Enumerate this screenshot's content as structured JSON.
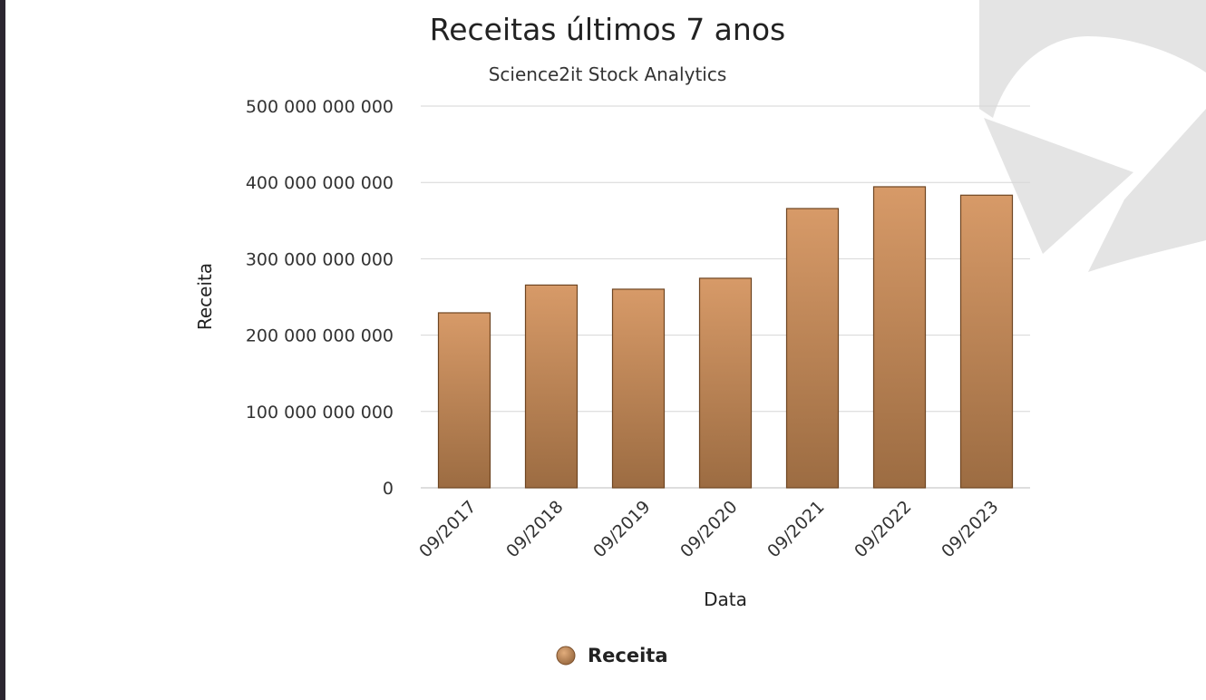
{
  "chart_data": {
    "type": "bar",
    "title": "Receitas últimos 7 anos",
    "subtitle": "Science2it Stock Analytics",
    "xlabel": "Data",
    "ylabel": "Receita",
    "categories": [
      "09/2017",
      "09/2018",
      "09/2019",
      "09/2020",
      "09/2021",
      "09/2022",
      "09/2023"
    ],
    "series": [
      {
        "name": "Receita",
        "values": [
          229234000000,
          265595000000,
          260174000000,
          274515000000,
          365817000000,
          394328000000,
          383285000000
        ]
      }
    ],
    "ylim": [
      0,
      500000000000
    ],
    "y_ticks": [
      {
        "value": 0,
        "label": "0"
      },
      {
        "value": 100000000000,
        "label": "100 000 000 000"
      },
      {
        "value": 200000000000,
        "label": "200 000 000 000"
      },
      {
        "value": 300000000000,
        "label": "300 000 000 000"
      },
      {
        "value": 400000000000,
        "label": "400 000 000 000"
      },
      {
        "value": 500000000000,
        "label": "500 000 000 000"
      }
    ],
    "grid": true,
    "legend": "bottom-center",
    "colors": {
      "bar_top": "#d79a68",
      "bar_bottom": "#9c6c42",
      "bar_border": "#6e4522",
      "grid": "#d6d6d6",
      "watermark": "#e4e4e4"
    }
  }
}
